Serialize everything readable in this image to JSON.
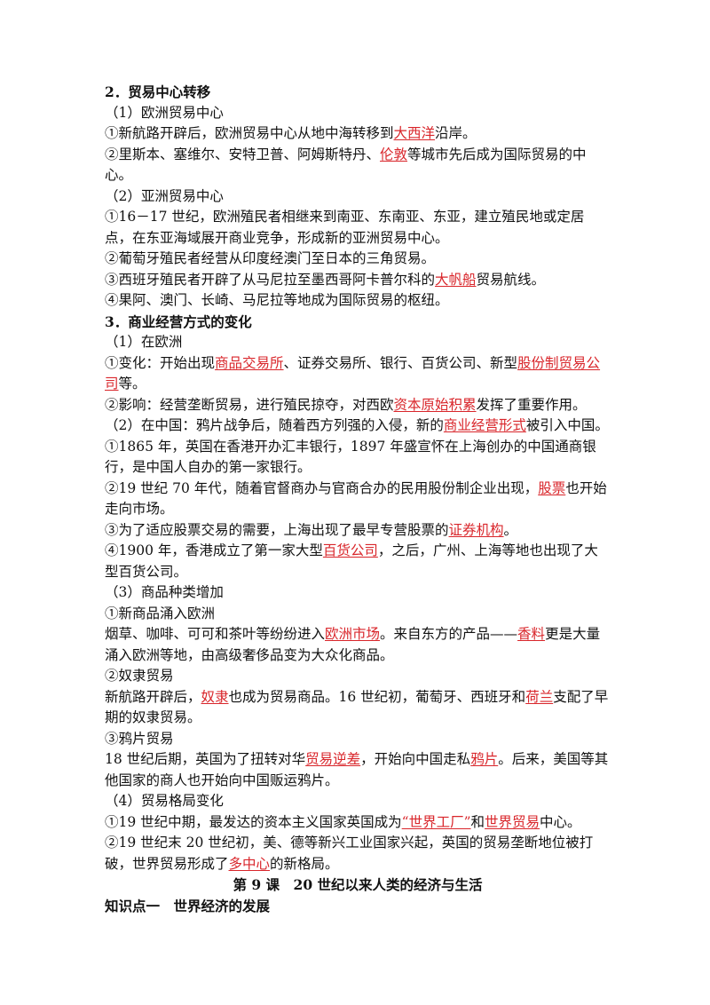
{
  "lines": [
    {
      "style": "bold",
      "segs": [
        {
          "t": "2．贸易中心转移"
        }
      ]
    },
    {
      "style": "",
      "segs": [
        {
          "t": "（1）欧洲贸易中心"
        }
      ]
    },
    {
      "style": "",
      "segs": [
        {
          "t": "①新航路开辟后，欧洲贸易中心从地中海转移到"
        },
        {
          "t": "大西洋",
          "hl": true
        },
        {
          "t": "沿岸。"
        }
      ]
    },
    {
      "style": "",
      "segs": [
        {
          "t": "②里斯本、塞维尔、安特卫普、阿姆斯特丹、"
        },
        {
          "t": "伦敦",
          "hl": true
        },
        {
          "t": "等城市先后成为国际贸易的中心。"
        }
      ]
    },
    {
      "style": "",
      "segs": [
        {
          "t": "（2）亚洲贸易中心"
        }
      ]
    },
    {
      "style": "",
      "segs": [
        {
          "t": "①16－17 世纪，欧洲殖民者相继来到南亚、东南亚、东亚，建立殖民地或定居点，在东亚海域展开商业竞争，形成新的亚洲贸易中心。"
        }
      ]
    },
    {
      "style": "",
      "segs": [
        {
          "t": "②葡萄牙殖民者经营从印度经澳门至日本的三角贸易。"
        }
      ]
    },
    {
      "style": "",
      "segs": [
        {
          "t": "③西班牙殖民者开辟了从马尼拉至墨西哥阿卡普尔科的"
        },
        {
          "t": "大帆船",
          "hl": true
        },
        {
          "t": "贸易航线。"
        }
      ]
    },
    {
      "style": "",
      "segs": [
        {
          "t": "④果阿、澳门、长崎、马尼拉等地成为国际贸易的枢纽。"
        }
      ]
    },
    {
      "style": "bold",
      "segs": [
        {
          "t": "3．商业经营方式的变化"
        }
      ]
    },
    {
      "style": "",
      "segs": [
        {
          "t": "（1）在欧洲"
        }
      ]
    },
    {
      "style": "",
      "segs": [
        {
          "t": "①变化：开始出现"
        },
        {
          "t": "商品交易所",
          "hl": true
        },
        {
          "t": "、证券交易所、银行、百货公司、新型"
        },
        {
          "t": "股份制贸易公司",
          "hl": true
        },
        {
          "t": "等。"
        }
      ]
    },
    {
      "style": "",
      "segs": [
        {
          "t": "②影响：经营垄断贸易，进行殖民掠夺，对西欧"
        },
        {
          "t": "资本原始积累",
          "hl": true
        },
        {
          "t": "发挥了重要作用。"
        }
      ]
    },
    {
      "style": "",
      "segs": [
        {
          "t": "（2）在中国：鸦片战争后，随着西方列强的入侵，新的"
        },
        {
          "t": "商业经营形式",
          "hl": true
        },
        {
          "t": "被引入中国。"
        }
      ]
    },
    {
      "style": "",
      "segs": [
        {
          "t": "①1865 年，英国在香港开办汇丰银行，1897 年盛宣怀在上海创办的中国通商银行，是中国人自办的第一家银行。"
        }
      ]
    },
    {
      "style": "",
      "segs": [
        {
          "t": "②19 世纪 70 年代，随着官督商办与官商合办的民用股份制企业出现，"
        },
        {
          "t": "股票",
          "hl": true
        },
        {
          "t": "也开始走向市场。"
        }
      ]
    },
    {
      "style": "",
      "segs": [
        {
          "t": "③为了适应股票交易的需要，上海出现了最早专营股票的"
        },
        {
          "t": "证券机构",
          "hl": true
        },
        {
          "t": "。"
        }
      ]
    },
    {
      "style": "",
      "segs": [
        {
          "t": "④1900 年，香港成立了第一家大型"
        },
        {
          "t": "百货公司",
          "hl": true
        },
        {
          "t": "，之后，广州、上海等地也出现了大型百货公司。"
        }
      ]
    },
    {
      "style": "",
      "segs": [
        {
          "t": "（3）商品种类增加"
        }
      ]
    },
    {
      "style": "",
      "segs": [
        {
          "t": "①新商品涌入欧洲"
        }
      ]
    },
    {
      "style": "",
      "segs": [
        {
          "t": "烟草、咖啡、可可和茶叶等纷纷进入"
        },
        {
          "t": "欧洲市场",
          "hl": true
        },
        {
          "t": "。来自东方的产品——"
        },
        {
          "t": "香料",
          "hl": true
        },
        {
          "t": "更是大量涌入欧洲等地，由高级奢侈品变为大众化商品。"
        }
      ]
    },
    {
      "style": "",
      "segs": [
        {
          "t": "②奴隶贸易"
        }
      ]
    },
    {
      "style": "",
      "segs": [
        {
          "t": "新航路开辟后，"
        },
        {
          "t": "奴隶",
          "hl": true
        },
        {
          "t": "也成为贸易商品。16 世纪初，葡萄牙、西班牙和"
        },
        {
          "t": "荷兰",
          "hl": true
        },
        {
          "t": "支配了早期的奴隶贸易。"
        }
      ]
    },
    {
      "style": "",
      "segs": [
        {
          "t": "③鸦片贸易"
        }
      ]
    },
    {
      "style": "",
      "segs": [
        {
          "t": "18 世纪后期，英国为了扭转对华"
        },
        {
          "t": "贸易逆差",
          "hl": true
        },
        {
          "t": "，开始向中国走私"
        },
        {
          "t": "鸦片",
          "hl": true
        },
        {
          "t": "。后来，美国等其他国家的商人也开始向中国贩运鸦片。"
        }
      ]
    },
    {
      "style": "",
      "segs": [
        {
          "t": "（4）贸易格局变化"
        }
      ]
    },
    {
      "style": "",
      "segs": [
        {
          "t": "①19 世纪中期，最发达的资本主义国家英国成为"
        },
        {
          "t": "“世界工厂”",
          "hl": true
        },
        {
          "t": "和"
        },
        {
          "t": "世界贸易",
          "hl": true
        },
        {
          "t": "中心。"
        }
      ]
    },
    {
      "style": "",
      "segs": [
        {
          "t": "②19 世纪末 20 世纪初，美、德等新兴工业国家兴起，英国的贸易垄断地位被打破，世界贸易形成了"
        },
        {
          "t": "多中心",
          "hl": true
        },
        {
          "t": "的新格局。"
        }
      ]
    },
    {
      "style": "bold center",
      "segs": [
        {
          "t": "第 9 课　20 世纪以来人类的经济与生活"
        }
      ]
    },
    {
      "style": "bold",
      "segs": [
        {
          "t": "知识点一　世界经济的发展"
        }
      ]
    }
  ]
}
